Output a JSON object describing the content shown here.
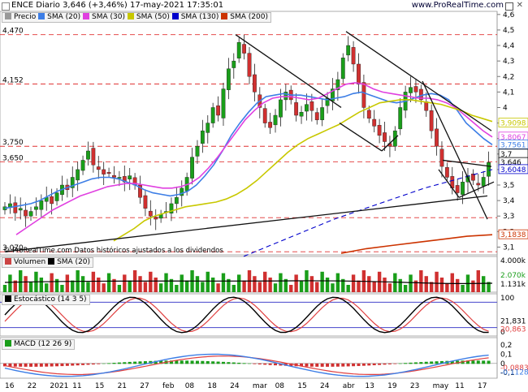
{
  "header": {
    "title": "ENCE Diario 3,646 (+3,46%) 17-may-2021 17:35:01",
    "site": "www.ProRealTime.com"
  },
  "legend_price": {
    "items": [
      "Precio",
      "SMA (20)",
      "SMA (30)",
      "SMA (50)",
      "SMA (130)",
      "SMA (200)"
    ]
  },
  "legend_volume": {
    "items": [
      "Volumen",
      "SMA (20)"
    ]
  },
  "legend_stoch": {
    "label": "Estocástico (14 3 5)"
  },
  "legend_macd": {
    "label": "MACD (12 26 9)"
  },
  "footer_note": "© ProRealTime.com Datos históricos ajustados a los dividendos",
  "colors": {
    "candle_up": "#1a9e1a",
    "candle_down": "#d03030",
    "sma20": "#3d7ee6",
    "sma30": "#e040e0",
    "sma50": "#c8c800",
    "sma130": "#0000cc",
    "sma200": "#cc3300",
    "hline": "#e03030"
  },
  "chart_data": [
    {
      "type": "candlestick",
      "title": "ENCE Diario",
      "y_ticks": [
        "4,6",
        "4,5",
        "4,4",
        "4,3",
        "4,2",
        "4,1",
        "4",
        "3,9",
        "3,8",
        "3,7",
        "3,6",
        "3,5",
        "3,4",
        "3,3",
        "3,2",
        "3,1"
      ],
      "ylim": [
        3.05,
        4.62
      ],
      "horizontal_levels": [
        4.47,
        4.152,
        3.75,
        3.65,
        3.07
      ],
      "level_labels": [
        "4,470",
        "4,152",
        "3,750",
        "3,650",
        "3,070"
      ],
      "extra_levels": [
        4.152,
        3.29
      ],
      "x_labels": [
        "16",
        "22",
        "2021",
        "11",
        "15",
        "21",
        "27",
        "feb",
        "08",
        "18",
        "24",
        "mar",
        "08",
        "15",
        "24",
        "abr",
        "13",
        "19",
        "23",
        "may",
        "11",
        "17"
      ],
      "close_series": [
        3.36,
        3.38,
        3.32,
        3.35,
        3.3,
        3.33,
        3.36,
        3.4,
        3.42,
        3.38,
        3.45,
        3.5,
        3.47,
        3.55,
        3.6,
        3.66,
        3.72,
        3.63,
        3.6,
        3.57,
        3.58,
        3.55,
        3.55,
        3.52,
        3.56,
        3.5,
        3.42,
        3.35,
        3.3,
        3.28,
        3.31,
        3.33,
        3.38,
        3.42,
        3.48,
        3.55,
        3.68,
        3.75,
        3.85,
        3.9,
        4.0,
        3.95,
        4.12,
        4.25,
        4.3,
        4.42,
        4.35,
        4.2,
        4.1,
        4.0,
        3.9,
        3.87,
        3.95,
        4.05,
        4.1,
        4.05,
        3.95,
        3.97,
        4.02,
        3.98,
        3.92,
        4.0,
        4.06,
        4.12,
        4.18,
        4.32,
        4.4,
        4.28,
        4.15,
        4.0,
        3.93,
        3.88,
        3.82,
        3.78,
        3.75,
        3.85,
        4.0,
        4.1,
        4.13,
        4.1,
        4.05,
        3.98,
        3.85,
        3.75,
        3.62,
        3.55,
        3.48,
        3.45,
        3.52,
        3.56,
        3.53,
        3.5,
        3.55,
        3.646
      ],
      "price_labels": {
        "sma50": "3,9098",
        "sma30": "3,8067",
        "sma20": "3,7561",
        "level_37": "3,7",
        "last": "3,646",
        "sma130": "3,6048",
        "sma200": "3,1838"
      },
      "series": [
        {
          "name": "SMA (20)",
          "values": [
            3.35,
            3.36,
            3.37,
            3.38,
            3.4,
            3.43,
            3.46,
            3.48,
            3.5,
            3.52,
            3.54,
            3.55,
            3.55,
            3.54,
            3.52,
            3.5,
            3.47,
            3.45,
            3.44,
            3.43,
            3.44,
            3.46,
            3.5,
            3.56,
            3.63,
            3.72,
            3.82,
            3.9,
            3.97,
            4.03,
            4.07,
            4.08,
            4.09,
            4.08,
            4.08,
            4.07,
            4.06,
            4.05,
            4.06,
            4.07,
            4.09,
            4.1,
            4.08,
            4.06,
            4.04,
            4.03,
            4.04,
            4.06,
            4.08,
            4.09,
            4.08,
            4.05,
            3.98,
            3.9,
            3.85,
            3.8,
            3.76
          ]
        },
        {
          "name": "SMA (30)",
          "values": [
            3.18,
            3.22,
            3.26,
            3.3,
            3.34,
            3.37,
            3.4,
            3.43,
            3.45,
            3.47,
            3.49,
            3.5,
            3.51,
            3.51,
            3.5,
            3.49,
            3.48,
            3.48,
            3.49,
            3.51,
            3.55,
            3.61,
            3.68,
            3.76,
            3.84,
            3.92,
            3.98,
            4.03,
            4.06,
            4.07,
            4.07,
            4.06,
            4.05,
            4.06,
            4.09,
            4.12,
            4.15,
            4.16,
            4.15,
            4.12,
            4.1,
            4.09,
            4.08,
            4.07,
            4.06,
            4.06,
            4.05,
            4.03,
            4.0,
            3.95,
            3.9,
            3.85,
            3.81
          ]
        },
        {
          "name": "SMA (50)",
          "values": [
            3.14,
            3.18,
            3.22,
            3.27,
            3.3,
            3.32,
            3.34,
            3.36,
            3.37,
            3.38,
            3.39,
            3.41,
            3.44,
            3.48,
            3.53,
            3.59,
            3.65,
            3.71,
            3.76,
            3.8,
            3.83,
            3.86,
            3.89,
            3.93,
            3.97,
            4.0,
            4.03,
            4.04,
            4.05,
            4.05,
            4.04,
            4.03,
            4.02,
            4.0,
            3.98,
            3.95,
            3.93,
            3.91
          ]
        },
        {
          "name": "SMA (130)",
          "values": [
            3.04,
            3.1,
            3.16,
            3.22,
            3.28,
            3.33,
            3.38,
            3.43,
            3.48,
            3.52,
            3.56,
            3.6
          ]
        },
        {
          "name": "SMA (200)",
          "values": [
            3.06,
            3.09,
            3.11,
            3.13,
            3.15,
            3.17,
            3.18
          ]
        }
      ]
    },
    {
      "type": "bar",
      "title": "Volumen",
      "y_ticks": [
        "4.000k"
      ],
      "value_labels": [
        "2.070k",
        "1.131k"
      ]
    },
    {
      "type": "line",
      "title": "Estocástico (14 3 5)",
      "y_ticks": [
        "100",
        "0"
      ],
      "value_labels": [
        "21,831",
        "20,863"
      ]
    },
    {
      "type": "line",
      "title": "MACD (12 26 9)",
      "y_ticks": [
        "0,2",
        "0,1",
        "0",
        "-0,1"
      ],
      "value_labels": [
        "-0,0883",
        "-0,1128"
      ]
    }
  ]
}
